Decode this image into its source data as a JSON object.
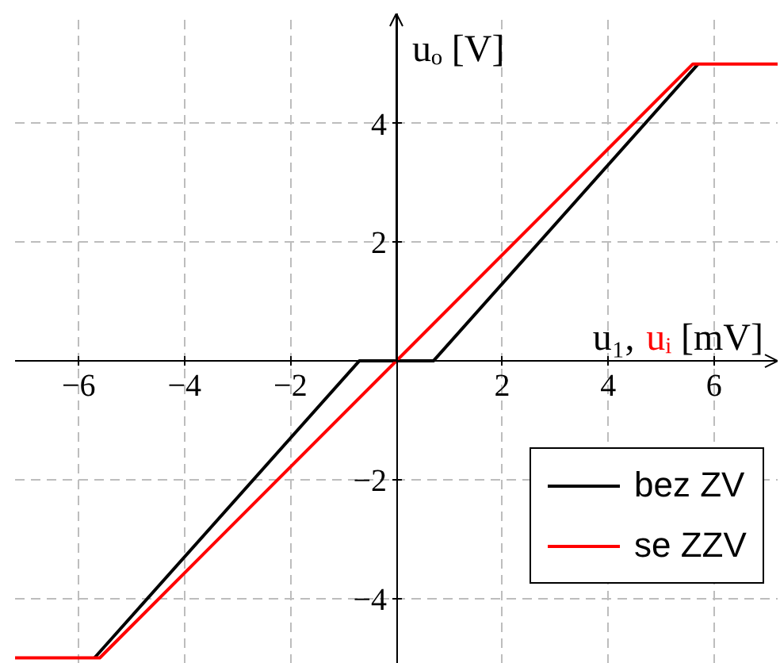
{
  "chart_data": {
    "type": "line",
    "xlabel": "u₁, uᵢ [mV]",
    "ylabel": "uₒ [V]",
    "xlim": [
      -7.2,
      7.2
    ],
    "ylim": [
      -5.1,
      5.85
    ],
    "xticks": [
      {
        "value": -6,
        "label": "−6"
      },
      {
        "value": -4,
        "label": "−4"
      },
      {
        "value": -2,
        "label": "−2"
      },
      2,
      4,
      6
    ],
    "yticks": [
      {
        "value": -4,
        "label": "−4"
      },
      {
        "value": -2,
        "label": "−2"
      },
      2,
      4
    ],
    "grid": true,
    "legend": "bottom right",
    "line_style": "solid",
    "series": [
      {
        "name": "bez ZV",
        "color": "#000000",
        "x": [
          -5.7,
          -0.7,
          0.7,
          5.7
        ],
        "values": [
          -5,
          0,
          0,
          5
        ]
      },
      {
        "name": "se ZZV",
        "color": "#ff0000",
        "x": [
          -7.2,
          -5.6,
          5.6,
          7.2
        ],
        "values": [
          -5,
          -5,
          5,
          5
        ]
      }
    ]
  }
}
